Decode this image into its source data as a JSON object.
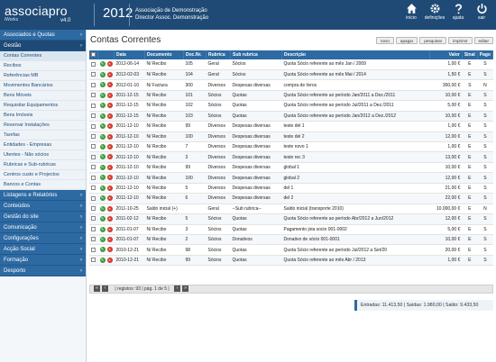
{
  "header": {
    "brand": "associapro",
    "brand_sub": "iWorks",
    "version": "v4.0",
    "year": "2012",
    "company_line1": "Associação de Demonstração",
    "company_line2": "Director Assoc. Demonstração",
    "actions": [
      {
        "label": "início",
        "icon": "home-icon"
      },
      {
        "label": "definições",
        "icon": "gear-icon"
      },
      {
        "label": "ajuda",
        "icon": "help-icon"
      },
      {
        "label": "sair",
        "icon": "power-icon"
      }
    ]
  },
  "sidebar": {
    "sections": [
      {
        "label": "Associados e Quotas"
      },
      {
        "label": "Gestão",
        "items": [
          "Contas Correntes",
          "Recibos",
          "Referências MB",
          "Movimentos Bancários",
          "Bens Móveis",
          "Requisitar Equipamentos",
          "Bens Imóveis",
          "Reservar Instalações",
          "Tarefas",
          "Entidades - Empresas",
          "Utentes - Não sócios",
          "Rubricas e Sub-rubricas",
          "Centros custo e Projectos",
          "Bancos e Contas"
        ]
      },
      {
        "label": "Listagens e Relatórios"
      },
      {
        "label": "Conteúdos"
      },
      {
        "label": "Gestão do site"
      },
      {
        "label": "Comunicação"
      },
      {
        "label": "Configurações"
      },
      {
        "label": "Acção Social"
      },
      {
        "label": "Formação"
      },
      {
        "label": "Desporto"
      }
    ]
  },
  "main": {
    "title": "Contas Correntes",
    "toolbar": [
      "novo",
      "apagar",
      "pesquisar",
      "imprimir",
      "editar"
    ],
    "columns": [
      "",
      "",
      "Data",
      "Documento",
      "Doc.Nr.",
      "Rubrica",
      "Sub rubrica",
      "Descrição",
      "Valor",
      "Sinal",
      "Pago"
    ],
    "rows": [
      {
        "data": "2012-06-14",
        "doc": "N/ Recibo",
        "nr": "105",
        "rubrica": "Geral",
        "sub": "Sócios",
        "desc": "Quota Sócio referente ao mês Jan / 2009",
        "valor": "1,00 €",
        "sinal": "E",
        "pago": "S"
      },
      {
        "data": "2012-02-03",
        "doc": "N/ Recibo",
        "nr": "104",
        "rubrica": "Geral",
        "sub": "Sócios",
        "desc": "Quota Sócio referente ao mês Mai / 2014",
        "valor": "1,50 €",
        "sinal": "E",
        "pago": "S"
      },
      {
        "data": "2012-01-10",
        "doc": "N/ Factura",
        "nr": "300",
        "rubrica": "Diversos",
        "sub": "Despesas diversas",
        "desc": "compra de livros",
        "valor": "300,00 €",
        "sinal": "S",
        "pago": "N"
      },
      {
        "data": "2011-12-15",
        "doc": "N/ Recibo",
        "nr": "101",
        "rubrica": "Sócios",
        "sub": "Quotas",
        "desc": "Quota Sócio referente ao período Jan/2011 a Dez./2011",
        "valor": "10,00 €",
        "sinal": "E",
        "pago": "S"
      },
      {
        "data": "2011-12-15",
        "doc": "N/ Recibo",
        "nr": "102",
        "rubrica": "Sócios",
        "sub": "Quotas",
        "desc": "Quota Sócio referente ao período Jul/2011 a Dez./2011",
        "valor": "5,00 €",
        "sinal": "E",
        "pago": "S"
      },
      {
        "data": "2011-12-15",
        "doc": "N/ Recibo",
        "nr": "103",
        "rubrica": "Sócios",
        "sub": "Quotas",
        "desc": "Quota Sócio referente ao período Jan/2012 a Dez./2012",
        "valor": "10,00 €",
        "sinal": "E",
        "pago": "S"
      },
      {
        "data": "2011-12-10",
        "doc": "N/ Recibo",
        "nr": "99",
        "rubrica": "Diversos",
        "sub": "Despesas diversas",
        "desc": "teste del 1",
        "valor": "1,00 €",
        "sinal": "E",
        "pago": "S"
      },
      {
        "data": "2011-12-10",
        "doc": "N/ Recibo",
        "nr": "100",
        "rubrica": "Diversos",
        "sub": "Despesas diversas",
        "desc": "teste del 2",
        "valor": "12,00 €",
        "sinal": "E",
        "pago": "S"
      },
      {
        "data": "2011-12-10",
        "doc": "N/ Recibo",
        "nr": "7",
        "rubrica": "Diversos",
        "sub": "Despesas diversas",
        "desc": "teste novo 1",
        "valor": "1,00 €",
        "sinal": "E",
        "pago": "S"
      },
      {
        "data": "2011-12-10",
        "doc": "N/ Recibo",
        "nr": "3",
        "rubrica": "Diversos",
        "sub": "Despesas diversas",
        "desc": "teste rec 3",
        "valor": "13,00 €",
        "sinal": "E",
        "pago": "S"
      },
      {
        "data": "2011-12-10",
        "doc": "N/ Recibo",
        "nr": "99",
        "rubrica": "Diversos",
        "sub": "Despesas diversas",
        "desc": "global 1",
        "valor": "10,00 €",
        "sinal": "E",
        "pago": "S"
      },
      {
        "data": "2011-12-10",
        "doc": "N/ Recibo",
        "nr": "100",
        "rubrica": "Diversos",
        "sub": "Despesas diversas",
        "desc": "global 2",
        "valor": "12,00 €",
        "sinal": "E",
        "pago": "S"
      },
      {
        "data": "2011-12-10",
        "doc": "N/ Recibo",
        "nr": "5",
        "rubrica": "Diversos",
        "sub": "Despesas diversas",
        "desc": "del 1",
        "valor": "21,00 €",
        "sinal": "E",
        "pago": "S"
      },
      {
        "data": "2011-12-10",
        "doc": "N/ Recibo",
        "nr": "6",
        "rubrica": "Diversos",
        "sub": "Despesas diversas",
        "desc": "del 2",
        "valor": "22,00 €",
        "sinal": "E",
        "pago": "S"
      },
      {
        "data": "2011-10-25",
        "doc": "Saldo inicial (+)",
        "nr": "",
        "rubrica": "Geral",
        "sub": "--Sub rubrica--",
        "desc": "Saldo inicial (transporte 2010)",
        "valor": "10.000,00 €",
        "sinal": "E",
        "pago": "N"
      },
      {
        "data": "2011-02-12",
        "doc": "N/ Recibo",
        "nr": "5",
        "rubrica": "Sócios",
        "sub": "Quotas",
        "desc": "Quota Sócio referente ao período Abr/2012 a Jun/2012",
        "valor": "12,00 €",
        "sinal": "E",
        "pago": "S"
      },
      {
        "data": "2011-01-07",
        "doc": "N/ Recibo",
        "nr": "3",
        "rubrica": "Sócios",
        "sub": "Quotas",
        "desc": "Pagamento joia socio 001-0002",
        "valor": "5,00 €",
        "sinal": "E",
        "pago": "S"
      },
      {
        "data": "2011-01-07",
        "doc": "N/ Recibo",
        "nr": "2",
        "rubrica": "Sócios",
        "sub": "Donativos",
        "desc": "Donativo de sócio 001-0001",
        "valor": "10,00 €",
        "sinal": "E",
        "pago": "S"
      },
      {
        "data": "2010-12-21",
        "doc": "N/ Recibo",
        "nr": "98",
        "rubrica": "Sócios",
        "sub": "Quotas",
        "desc": "Quota Sócio referente ao período Jul/2012 a Set/20",
        "valor": "20,00 €",
        "sinal": "E",
        "pago": "S"
      },
      {
        "data": "2010-12-21",
        "doc": "N/ Recibo",
        "nr": "99",
        "rubrica": "Sócios",
        "sub": "Quotas",
        "desc": "Quota Sócio referente ao mês Abr / 2013",
        "valor": "1,00 €",
        "sinal": "E",
        "pago": "S"
      }
    ],
    "pager": "| registos: 93 | pág. 1 de 5 |",
    "totals": "Entradas: 11.413,50  |  Saídas: 1.980,00  |  Saldo: 9.433,50"
  }
}
